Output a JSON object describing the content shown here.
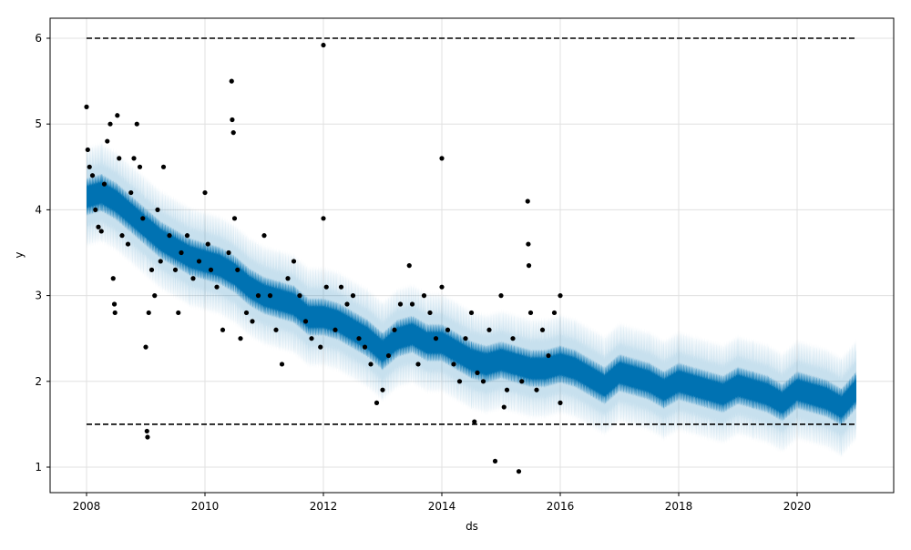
{
  "chart_data": {
    "type": "line",
    "title": "",
    "xlabel": "ds",
    "ylabel": "y",
    "xlim": [
      2007.4,
      2021.7
    ],
    "ylim": [
      0.7,
      6.25
    ],
    "xticks": [
      2008,
      2010,
      2012,
      2014,
      2016,
      2018,
      2020
    ],
    "xtick_labels": [
      "2008",
      "2010",
      "2012",
      "2014",
      "2016",
      "2018",
      "2020"
    ],
    "yticks": [
      1,
      2,
      3,
      4,
      5,
      6
    ],
    "ytick_labels": [
      "1",
      "2",
      "3",
      "4",
      "5",
      "6"
    ],
    "grid": true,
    "colors": {
      "forecast": "#0072B2",
      "interval": "#0072B2",
      "observed": "#000000",
      "cap_floor": "#000000"
    },
    "cap": 6,
    "floor": 1.5,
    "cap_floor_x": [
      2008,
      2021
    ],
    "forecast": {
      "x": [
        2008.0,
        2008.25,
        2008.5,
        2008.75,
        2009.0,
        2009.25,
        2009.5,
        2009.75,
        2010.0,
        2010.25,
        2010.5,
        2010.75,
        2011.0,
        2011.25,
        2011.5,
        2011.75,
        2012.0,
        2012.25,
        2012.5,
        2012.75,
        2013.0,
        2013.25,
        2013.5,
        2013.75,
        2014.0,
        2014.25,
        2014.5,
        2014.75,
        2015.0,
        2015.25,
        2015.5,
        2015.75,
        2016.0,
        2016.25,
        2016.5,
        2016.75,
        2017.0,
        2017.25,
        2017.5,
        2017.75,
        2018.0,
        2018.25,
        2018.5,
        2018.75,
        2019.0,
        2019.25,
        2019.5,
        2019.75,
        2020.0,
        2020.25,
        2020.5,
        2020.75,
        2021.0
      ],
      "yhat": [
        4.15,
        4.2,
        4.1,
        3.95,
        3.8,
        3.65,
        3.55,
        3.45,
        3.4,
        3.35,
        3.25,
        3.1,
        3.0,
        2.95,
        2.9,
        2.75,
        2.75,
        2.7,
        2.6,
        2.5,
        2.35,
        2.5,
        2.55,
        2.45,
        2.45,
        2.35,
        2.25,
        2.2,
        2.25,
        2.2,
        2.15,
        2.15,
        2.2,
        2.15,
        2.05,
        1.95,
        2.1,
        2.05,
        2.0,
        1.9,
        2.0,
        1.95,
        1.9,
        1.85,
        1.95,
        1.9,
        1.85,
        1.75,
        1.9,
        1.85,
        1.8,
        1.7,
        1.9
      ],
      "yhat_band_halfwidth": 0.17,
      "interval_halfwidth": 0.45
    },
    "observed": [
      [
        2008.0,
        5.2
      ],
      [
        2008.02,
        4.7
      ],
      [
        2008.05,
        4.5
      ],
      [
        2008.1,
        4.4
      ],
      [
        2008.15,
        4.0
      ],
      [
        2008.2,
        3.8
      ],
      [
        2008.25,
        3.75
      ],
      [
        2008.3,
        4.3
      ],
      [
        2008.35,
        4.8
      ],
      [
        2008.4,
        5.0
      ],
      [
        2008.45,
        3.2
      ],
      [
        2008.47,
        2.9
      ],
      [
        2008.48,
        2.8
      ],
      [
        2008.52,
        5.1
      ],
      [
        2008.55,
        4.6
      ],
      [
        2008.6,
        3.7
      ],
      [
        2008.7,
        3.6
      ],
      [
        2008.75,
        4.2
      ],
      [
        2008.8,
        4.6
      ],
      [
        2008.85,
        5.0
      ],
      [
        2008.9,
        4.5
      ],
      [
        2008.95,
        3.9
      ],
      [
        2009.0,
        2.4
      ],
      [
        2009.02,
        1.42
      ],
      [
        2009.03,
        1.35
      ],
      [
        2009.05,
        2.8
      ],
      [
        2009.1,
        3.3
      ],
      [
        2009.15,
        3.0
      ],
      [
        2009.2,
        4.0
      ],
      [
        2009.25,
        3.4
      ],
      [
        2009.3,
        4.5
      ],
      [
        2009.4,
        3.7
      ],
      [
        2009.5,
        3.3
      ],
      [
        2009.55,
        2.8
      ],
      [
        2009.6,
        3.5
      ],
      [
        2009.7,
        3.7
      ],
      [
        2009.8,
        3.2
      ],
      [
        2009.9,
        3.4
      ],
      [
        2010.0,
        4.2
      ],
      [
        2010.05,
        3.6
      ],
      [
        2010.1,
        3.3
      ],
      [
        2010.2,
        3.1
      ],
      [
        2010.3,
        2.6
      ],
      [
        2010.4,
        3.5
      ],
      [
        2010.45,
        5.5
      ],
      [
        2010.46,
        5.05
      ],
      [
        2010.48,
        4.9
      ],
      [
        2010.5,
        3.9
      ],
      [
        2010.55,
        3.3
      ],
      [
        2010.6,
        2.5
      ],
      [
        2010.7,
        2.8
      ],
      [
        2010.8,
        2.7
      ],
      [
        2010.9,
        3.0
      ],
      [
        2011.0,
        3.7
      ],
      [
        2011.1,
        3.0
      ],
      [
        2011.2,
        2.6
      ],
      [
        2011.3,
        2.2
      ],
      [
        2011.4,
        3.2
      ],
      [
        2011.5,
        3.4
      ],
      [
        2011.6,
        3.0
      ],
      [
        2011.7,
        2.7
      ],
      [
        2011.8,
        2.5
      ],
      [
        2011.95,
        2.4
      ],
      [
        2012.0,
        5.92
      ],
      [
        2012.0,
        3.9
      ],
      [
        2012.05,
        3.1
      ],
      [
        2012.2,
        2.6
      ],
      [
        2012.3,
        3.1
      ],
      [
        2012.4,
        2.9
      ],
      [
        2012.5,
        3.0
      ],
      [
        2012.6,
        2.5
      ],
      [
        2012.7,
        2.4
      ],
      [
        2012.8,
        2.2
      ],
      [
        2012.9,
        1.75
      ],
      [
        2013.0,
        1.9
      ],
      [
        2013.1,
        2.3
      ],
      [
        2013.2,
        2.6
      ],
      [
        2013.3,
        2.9
      ],
      [
        2013.45,
        3.35
      ],
      [
        2013.5,
        2.9
      ],
      [
        2013.6,
        2.2
      ],
      [
        2013.7,
        3.0
      ],
      [
        2013.8,
        2.8
      ],
      [
        2013.9,
        2.5
      ],
      [
        2014.0,
        4.6
      ],
      [
        2014.0,
        3.1
      ],
      [
        2014.1,
        2.6
      ],
      [
        2014.2,
        2.2
      ],
      [
        2014.3,
        2.0
      ],
      [
        2014.4,
        2.5
      ],
      [
        2014.5,
        2.8
      ],
      [
        2014.55,
        1.53
      ],
      [
        2014.6,
        2.1
      ],
      [
        2014.7,
        2.0
      ],
      [
        2014.8,
        2.6
      ],
      [
        2014.9,
        1.07
      ],
      [
        2015.0,
        3.0
      ],
      [
        2015.05,
        1.7
      ],
      [
        2015.1,
        1.9
      ],
      [
        2015.2,
        2.5
      ],
      [
        2015.3,
        0.95
      ],
      [
        2015.35,
        2.0
      ],
      [
        2015.45,
        4.1
      ],
      [
        2015.46,
        3.6
      ],
      [
        2015.47,
        3.35
      ],
      [
        2015.5,
        2.8
      ],
      [
        2015.6,
        1.9
      ],
      [
        2015.7,
        2.6
      ],
      [
        2015.8,
        2.3
      ],
      [
        2015.9,
        2.8
      ],
      [
        2016.0,
        3.0
      ],
      [
        2016.0,
        1.75
      ]
    ]
  }
}
